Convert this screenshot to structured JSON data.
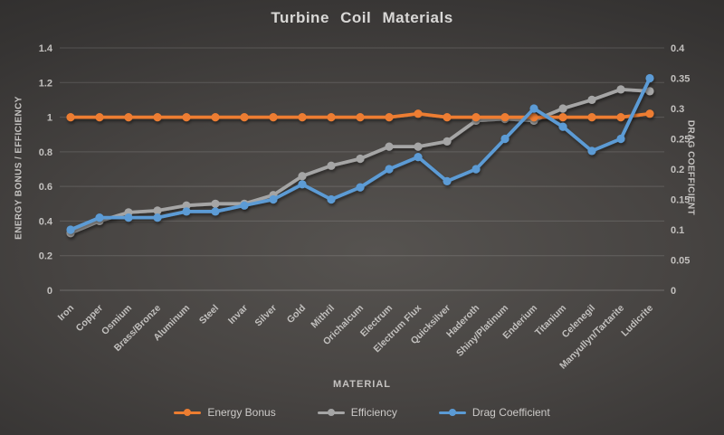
{
  "chart_data": {
    "type": "line",
    "title": "Turbine Coil Materials",
    "xlabel": "MATERIAL",
    "ylabel_left": "ENERGY BONUS / EFFICIENCY",
    "ylabel_right": "DRAG COEFFICIENT",
    "grid": true,
    "legend_position": "bottom",
    "categories": [
      "Iron",
      "Copper",
      "Osmium",
      "Brass/Bronze",
      "Aluminum",
      "Steel",
      "Invar",
      "Silver",
      "Gold",
      "Mithril",
      "Orichalcum",
      "Electrum",
      "Electrum Flux",
      "Quicksilver",
      "Haderoth",
      "Shiny/Platinum",
      "Enderium",
      "Titanium",
      "Celenegil",
      "Manyullyn/Tartarite",
      "Ludicrite"
    ],
    "series": [
      {
        "name": "Energy Bonus",
        "color": "#ED7D31",
        "axis": "left",
        "values": [
          1,
          1,
          1,
          1,
          1,
          1,
          1,
          1,
          1,
          1,
          1,
          1,
          1.02,
          1,
          1,
          1,
          1,
          1,
          1,
          1,
          1.02
        ]
      },
      {
        "name": "Efficiency",
        "color": "#A5A5A5",
        "axis": "left",
        "values": [
          0.33,
          0.4,
          0.45,
          0.46,
          0.49,
          0.5,
          0.5,
          0.55,
          0.66,
          0.72,
          0.76,
          0.83,
          0.83,
          0.86,
          0.98,
          0.99,
          0.98,
          1.05,
          1.1,
          1.16,
          1.15
        ]
      },
      {
        "name": "Drag Coefficient",
        "color": "#5B9BD5",
        "axis": "right",
        "values": [
          0.1,
          0.12,
          0.12,
          0.12,
          0.13,
          0.13,
          0.14,
          0.15,
          0.175,
          0.15,
          0.17,
          0.2,
          0.22,
          0.18,
          0.2,
          0.25,
          0.3,
          0.27,
          0.23,
          0.25,
          0.35
        ]
      }
    ],
    "left_axis": {
      "min": 0,
      "max": 1.4,
      "ticks": [
        "0",
        "0.2",
        "0.4",
        "0.6",
        "0.8",
        "1",
        "1.2",
        "1.4"
      ]
    },
    "right_axis": {
      "min": 0,
      "max": 0.4,
      "ticks": [
        "0",
        "0.05",
        "0.1",
        "0.15",
        "0.2",
        "0.25",
        "0.3",
        "0.35",
        "0.4"
      ]
    },
    "colors": {
      "grid": "rgba(255,255,255,0.14)",
      "zero_line": "rgba(255,255,255,0.22)",
      "tick_text": "#c2c0be",
      "title_text": "#d9d8d6"
    }
  }
}
